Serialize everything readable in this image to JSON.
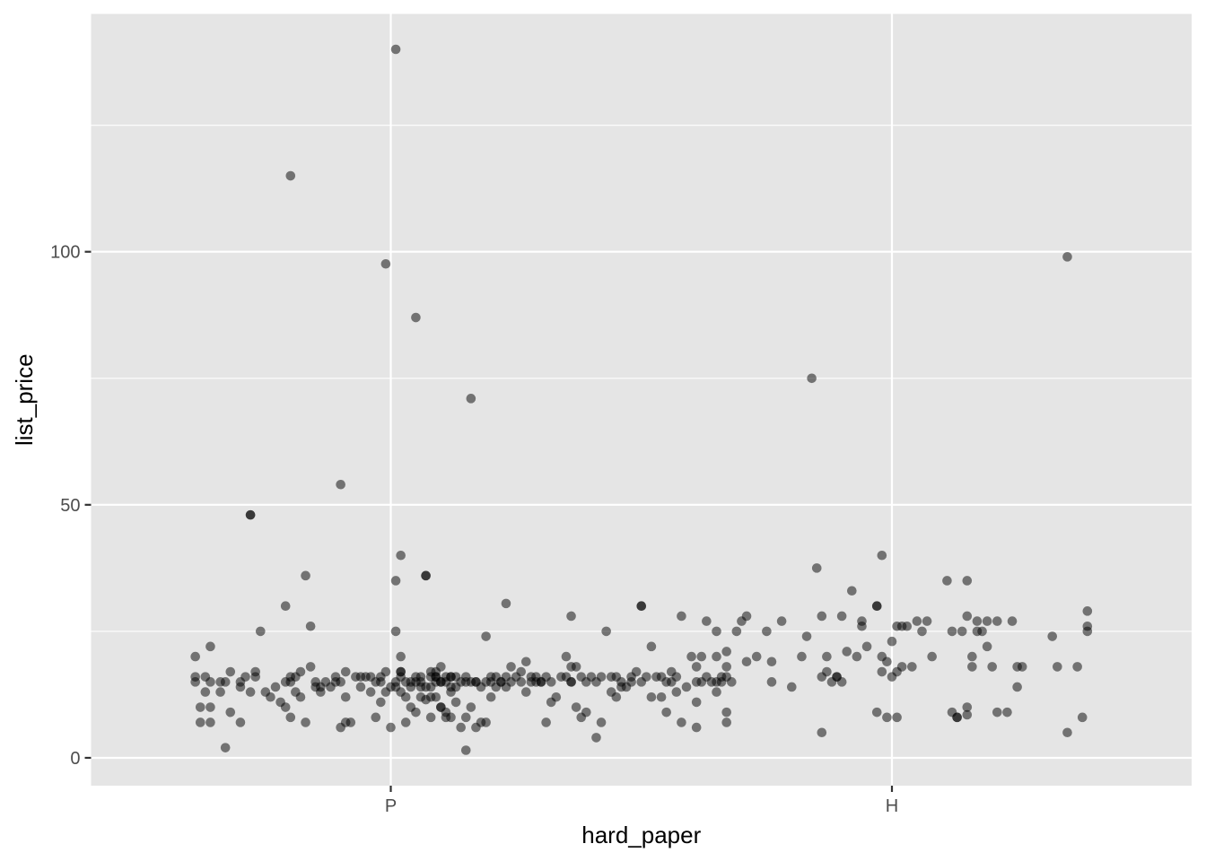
{
  "chart_data": {
    "type": "scatter",
    "title": "",
    "xlabel": "hard_paper",
    "ylabel": "list_price",
    "categories": [
      "P",
      "H"
    ],
    "ylim": [
      -5.5,
      147
    ],
    "yticks": [
      0,
      50,
      100
    ],
    "grid": true,
    "point_color": "#000000",
    "point_alpha": 0.5,
    "panel_color": "#e5e5e5",
    "grid_color": "#ffffff",
    "series": [
      {
        "category": "P",
        "points": [
          [
            -0.39,
            20
          ],
          [
            -0.39,
            16
          ],
          [
            -0.39,
            15
          ],
          [
            -0.38,
            10
          ],
          [
            -0.38,
            7
          ],
          [
            -0.37,
            13
          ],
          [
            -0.36,
            15
          ],
          [
            -0.36,
            10
          ],
          [
            -0.37,
            16
          ],
          [
            -0.36,
            7
          ],
          [
            -0.36,
            22
          ],
          [
            -0.34,
            15
          ],
          [
            -0.34,
            13
          ],
          [
            -0.33,
            2
          ],
          [
            -0.33,
            15
          ],
          [
            -0.32,
            9
          ],
          [
            -0.32,
            17
          ],
          [
            -0.3,
            14
          ],
          [
            -0.3,
            15
          ],
          [
            -0.3,
            7
          ],
          [
            -0.28,
            48
          ],
          [
            -0.28,
            48
          ],
          [
            -0.29,
            16
          ],
          [
            -0.28,
            13
          ],
          [
            -0.27,
            16
          ],
          [
            -0.27,
            17
          ],
          [
            -0.26,
            25
          ],
          [
            -0.25,
            13
          ],
          [
            -0.24,
            12
          ],
          [
            -0.23,
            14
          ],
          [
            -0.22,
            11
          ],
          [
            -0.21,
            10
          ],
          [
            -0.21,
            15
          ],
          [
            -0.2,
            15
          ],
          [
            -0.21,
            30
          ],
          [
            -0.2,
            16
          ],
          [
            -0.19,
            16
          ],
          [
            -0.2,
            8
          ],
          [
            -0.19,
            13
          ],
          [
            -0.18,
            17
          ],
          [
            -0.18,
            12
          ],
          [
            -0.17,
            36
          ],
          [
            -0.17,
            7
          ],
          [
            -0.16,
            18
          ],
          [
            -0.16,
            26
          ],
          [
            -0.15,
            15
          ],
          [
            -0.14,
            13
          ],
          [
            -0.14,
            14
          ],
          [
            -0.13,
            15
          ],
          [
            -0.12,
            14
          ],
          [
            -0.11,
            16
          ],
          [
            -0.2,
            115
          ],
          [
            -0.15,
            14
          ],
          [
            -0.11,
            15
          ],
          [
            -0.1,
            6
          ],
          [
            -0.09,
            7
          ],
          [
            -0.08,
            7
          ],
          [
            -0.1,
            15
          ],
          [
            -0.09,
            17
          ],
          [
            -0.09,
            12
          ],
          [
            -0.07,
            16
          ],
          [
            -0.06,
            14
          ],
          [
            -0.05,
            16
          ],
          [
            -0.04,
            16
          ],
          [
            -0.03,
            8
          ],
          [
            -0.02,
            16
          ],
          [
            -0.01,
            13
          ],
          [
            0.0,
            6
          ],
          [
            -0.1,
            54
          ],
          [
            -0.06,
            16
          ],
          [
            -0.04,
            13
          ],
          [
            -0.03,
            15
          ],
          [
            -0.02,
            15
          ],
          [
            -0.02,
            11
          ],
          [
            -0.01,
            17
          ],
          [
            0.01,
            14
          ],
          [
            0.01,
            35
          ],
          [
            0.01,
            15
          ],
          [
            0.02,
            17
          ],
          [
            0.02,
            17
          ],
          [
            0.03,
            15
          ],
          [
            0.03,
            7
          ],
          [
            0.04,
            10
          ],
          [
            0.04,
            14
          ],
          [
            0.05,
            87
          ],
          [
            0.05,
            16
          ],
          [
            0.06,
            12
          ],
          [
            0.06,
            15
          ],
          [
            0.07,
            14
          ],
          [
            0.08,
            8
          ],
          [
            0.08,
            16
          ],
          [
            0.09,
            15
          ],
          [
            0.09,
            17
          ],
          [
            0.1,
            15
          ],
          [
            0.1,
            10
          ],
          [
            0.11,
            9
          ],
          [
            0.11,
            16
          ],
          [
            0.12,
            8
          ],
          [
            0.12,
            16
          ],
          [
            -0.01,
            97.6
          ],
          [
            0.01,
            140
          ],
          [
            0.0,
            14
          ],
          [
            0.01,
            25
          ],
          [
            0.02,
            13
          ],
          [
            0.02,
            16
          ],
          [
            0.02,
            40
          ],
          [
            0.02,
            20
          ],
          [
            0.03,
            12
          ],
          [
            0.04,
            15
          ],
          [
            0.05,
            15
          ],
          [
            0.05,
            9
          ],
          [
            0.06,
            14
          ],
          [
            0.06,
            16
          ],
          [
            0.07,
            11.5
          ],
          [
            0.08,
            12
          ],
          [
            0.08,
            17
          ],
          [
            0.09,
            16
          ],
          [
            0.1,
            10
          ],
          [
            0.1,
            15
          ],
          [
            0.1,
            18
          ],
          [
            0.07,
            36
          ],
          [
            0.07,
            36
          ],
          [
            0.08,
            14
          ],
          [
            0.09,
            16
          ],
          [
            0.09,
            12
          ],
          [
            0.11,
            15
          ],
          [
            0.12,
            14
          ],
          [
            0.12,
            16
          ],
          [
            0.13,
            16
          ],
          [
            0.13,
            14
          ],
          [
            0.13,
            11
          ],
          [
            0.14,
            15
          ],
          [
            0.15,
            15
          ],
          [
            0.15,
            16
          ],
          [
            0.15,
            8
          ],
          [
            0.15,
            1.5
          ],
          [
            0.16,
            10
          ],
          [
            0.16,
            15
          ],
          [
            0.17,
            15
          ],
          [
            0.17,
            6
          ],
          [
            0.17,
            15
          ],
          [
            0.18,
            14
          ],
          [
            0.18,
            7
          ],
          [
            0.19,
            15
          ],
          [
            0.19,
            24
          ],
          [
            0.19,
            7
          ],
          [
            0.2,
            15
          ],
          [
            0.2,
            16
          ],
          [
            0.2,
            12
          ],
          [
            0.21,
            14
          ],
          [
            0.21,
            16
          ],
          [
            0.22,
            15
          ],
          [
            0.23,
            30.5
          ],
          [
            0.22,
            15
          ],
          [
            0.23,
            14
          ],
          [
            0.23,
            16
          ],
          [
            0.24,
            15
          ],
          [
            0.24,
            18
          ],
          [
            0.25,
            16
          ],
          [
            0.26,
            15
          ],
          [
            0.26,
            17
          ],
          [
            0.27,
            19
          ],
          [
            0.27,
            13
          ],
          [
            0.28,
            15
          ],
          [
            0.28,
            16
          ],
          [
            0.29,
            15
          ],
          [
            0.29,
            16
          ],
          [
            0.3,
            15
          ],
          [
            0.3,
            15
          ],
          [
            0.31,
            16
          ],
          [
            0.31,
            7
          ],
          [
            0.32,
            11
          ],
          [
            0.32,
            15
          ],
          [
            0.33,
            12
          ],
          [
            0.34,
            16
          ],
          [
            0.35,
            20
          ],
          [
            0.35,
            16
          ],
          [
            0.36,
            15
          ],
          [
            0.36,
            15
          ],
          [
            0.36,
            28
          ],
          [
            0.36,
            18
          ],
          [
            0.37,
            18
          ],
          [
            0.38,
            16
          ],
          [
            0.39,
            15
          ],
          [
            0.4,
            16
          ],
          [
            0.41,
            15
          ],
          [
            0.42,
            16
          ],
          [
            0.43,
            25
          ],
          [
            0.44,
            16
          ],
          [
            0.44,
            13
          ],
          [
            0.45,
            16
          ],
          [
            0.45,
            12
          ],
          [
            0.46,
            14
          ],
          [
            0.46,
            15
          ],
          [
            0.47,
            14
          ],
          [
            0.48,
            16
          ],
          [
            0.48,
            15
          ],
          [
            0.49,
            17
          ],
          [
            0.5,
            30
          ],
          [
            0.5,
            30
          ],
          [
            0.5,
            15
          ],
          [
            0.51,
            16
          ],
          [
            0.52,
            12
          ],
          [
            0.52,
            22
          ],
          [
            0.53,
            16
          ],
          [
            0.54,
            16
          ],
          [
            0.54,
            12
          ],
          [
            0.55,
            15
          ],
          [
            0.55,
            9
          ],
          [
            0.56,
            17
          ],
          [
            0.56,
            15
          ],
          [
            0.57,
            16
          ],
          [
            0.57,
            13
          ],
          [
            0.58,
            7
          ],
          [
            0.58,
            28
          ],
          [
            0.59,
            14
          ],
          [
            0.6,
            20
          ],
          [
            0.61,
            6
          ],
          [
            0.61,
            15
          ],
          [
            0.62,
            15
          ],
          [
            0.63,
            16
          ],
          [
            0.64,
            15
          ],
          [
            0.65,
            13
          ],
          [
            0.65,
            15
          ],
          [
            0.66,
            16
          ],
          [
            0.67,
            9
          ],
          [
            0.67,
            16
          ],
          [
            0.67,
            18
          ],
          [
            0.67,
            7
          ],
          [
            0.68,
            15
          ],
          [
            0.16,
            71
          ],
          [
            0.37,
            10
          ],
          [
            0.38,
            8
          ],
          [
            0.39,
            9
          ],
          [
            0.41,
            4
          ],
          [
            0.42,
            7
          ],
          [
            0.11,
            8
          ],
          [
            0.12,
            13
          ],
          [
            0.14,
            6
          ]
        ]
      },
      {
        "category": "H",
        "points": [
          [
            -0.39,
            18
          ],
          [
            -0.39,
            11
          ],
          [
            -0.38,
            20
          ],
          [
            -0.37,
            27
          ],
          [
            -0.35,
            20
          ],
          [
            -0.35,
            25
          ],
          [
            -0.34,
            15
          ],
          [
            -0.33,
            21
          ],
          [
            -0.31,
            25
          ],
          [
            -0.3,
            27
          ],
          [
            -0.29,
            28
          ],
          [
            -0.29,
            19
          ],
          [
            -0.27,
            20
          ],
          [
            -0.25,
            25
          ],
          [
            -0.24,
            15
          ],
          [
            -0.24,
            19
          ],
          [
            -0.22,
            27
          ],
          [
            -0.2,
            14
          ],
          [
            -0.18,
            20
          ],
          [
            -0.17,
            24
          ],
          [
            -0.15,
            37.5
          ],
          [
            -0.14,
            16
          ],
          [
            -0.14,
            28
          ],
          [
            -0.13,
            17
          ],
          [
            -0.13,
            20
          ],
          [
            -0.12,
            15
          ],
          [
            -0.11,
            16
          ],
          [
            -0.11,
            16
          ],
          [
            -0.1,
            28
          ],
          [
            -0.1,
            15
          ],
          [
            -0.09,
            21
          ],
          [
            -0.08,
            33
          ],
          [
            -0.07,
            20
          ],
          [
            -0.06,
            27
          ],
          [
            -0.06,
            26
          ],
          [
            -0.05,
            22
          ],
          [
            -0.14,
            5
          ],
          [
            -0.16,
            75
          ],
          [
            -0.03,
            9
          ],
          [
            -0.02,
            20
          ],
          [
            -0.02,
            17
          ],
          [
            -0.01,
            8
          ],
          [
            0.0,
            16
          ],
          [
            0.01,
            17
          ],
          [
            -0.03,
            30
          ],
          [
            -0.03,
            30
          ],
          [
            -0.02,
            40
          ],
          [
            -0.01,
            19
          ],
          [
            0.0,
            23
          ],
          [
            0.01,
            8
          ],
          [
            0.01,
            26
          ],
          [
            0.02,
            18
          ],
          [
            0.02,
            26
          ],
          [
            0.03,
            26
          ],
          [
            0.04,
            18
          ],
          [
            0.05,
            27
          ],
          [
            0.06,
            25
          ],
          [
            0.07,
            27
          ],
          [
            0.08,
            20
          ],
          [
            0.11,
            35
          ],
          [
            0.12,
            25
          ],
          [
            0.13,
            8
          ],
          [
            0.14,
            25
          ],
          [
            0.15,
            35
          ],
          [
            0.15,
            28
          ],
          [
            0.16,
            20
          ],
          [
            0.16,
            18
          ],
          [
            0.17,
            25
          ],
          [
            0.17,
            27
          ],
          [
            0.18,
            25
          ],
          [
            0.19,
            27
          ],
          [
            0.19,
            22
          ],
          [
            0.2,
            18
          ],
          [
            0.21,
            27
          ],
          [
            0.21,
            9
          ],
          [
            0.23,
            9
          ],
          [
            0.24,
            27
          ],
          [
            0.25,
            18
          ],
          [
            0.25,
            14
          ],
          [
            0.26,
            18
          ],
          [
            0.13,
            8
          ],
          [
            0.15,
            10
          ],
          [
            0.32,
            24
          ],
          [
            0.33,
            18
          ],
          [
            0.35,
            5
          ],
          [
            0.35,
            99
          ],
          [
            0.37,
            18
          ],
          [
            0.38,
            8
          ],
          [
            0.39,
            26
          ],
          [
            0.39,
            29
          ],
          [
            0.39,
            25
          ],
          [
            0.12,
            9
          ],
          [
            0.15,
            8.5
          ]
        ]
      }
    ]
  }
}
